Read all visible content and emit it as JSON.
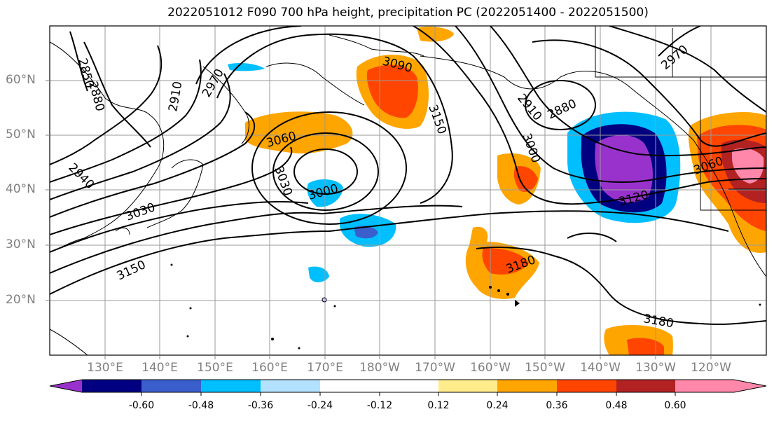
{
  "title": "2022051012 F090 700 hPa height, precipitation PC (2022051400 - 2022051500)",
  "lat_labels": [
    "60°N",
    "50°N",
    "40°N",
    "30°N",
    "20°N"
  ],
  "lon_labels": [
    "130°E",
    "140°E",
    "150°E",
    "160°E",
    "170°E",
    "180°W",
    "170°W",
    "160°W",
    "150°W",
    "140°W",
    "130°W",
    "120°W"
  ],
  "colorbar": {
    "ticks": [
      "-0.60",
      "-0.48",
      "-0.36",
      "-0.24",
      "-0.12",
      "0.12",
      "0.24",
      "0.36",
      "0.48",
      "0.60"
    ],
    "colors": [
      "#9932CC",
      "#000080",
      "#3A5FCD",
      "#00BFFF",
      "#B2E2FF",
      "#FFFFFF",
      "#FFEC8B",
      "#FFA500",
      "#FF4500",
      "#B22222",
      "#FF88AA"
    ]
  },
  "contour_labels": [
    "2850",
    "2880",
    "2910",
    "2970",
    "3090",
    "3150",
    "3060",
    "2940",
    "3030",
    "3000",
    "3030",
    "2910",
    "2880",
    "3000",
    "3120",
    "3060",
    "2970",
    "3180",
    "3150",
    "3180"
  ]
}
